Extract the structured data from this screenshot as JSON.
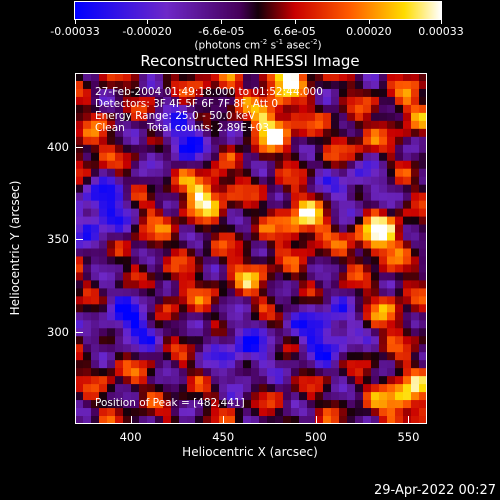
{
  "chart_data": {
    "type": "heatmap",
    "title": "Reconstructed RHESSI Image",
    "xlabel": "Heliocentric X (arcsec)",
    "ylabel": "Heliocentric Y (arcsec)",
    "xlim": [
      370,
      560
    ],
    "ylim": [
      250,
      440
    ],
    "xticks": [
      400,
      450,
      500,
      550
    ],
    "yticks": [
      300,
      350,
      400
    ],
    "colorbar": {
      "range": [
        -0.00033,
        0.00033
      ],
      "ticks": [
        "-0.00033",
        "-0.00020",
        "-6.6e-05",
        "6.6e-05",
        "0.00020",
        "0.00033"
      ],
      "units_text": "(photons cm",
      "units_exp1": "-2",
      "units_mid": " s",
      "units_exp2": "-1",
      "units_mid2": " asec",
      "units_exp3": "-2",
      "units_end": ")"
    },
    "info": {
      "time": "27-Feb-2004 01:49:18.000 to 01:52:44.000",
      "detectors": "Detectors: 3F 4F 5F 6F 7F 8F, Att 0",
      "energy": "Energy Range: 25.0 - 50.0 keV",
      "method": "Clean",
      "counts": "Total counts: 2.89E+03",
      "peak": "Position of Peak = [482,441]"
    },
    "peaks": [
      {
        "x": 482,
        "y": 441,
        "value": 0.00033
      },
      {
        "x": 477,
        "y": 412,
        "value": 0.00029
      },
      {
        "x": 440,
        "y": 376,
        "value": 0.0003
      },
      {
        "x": 493,
        "y": 360,
        "value": 0.00028
      },
      {
        "x": 533,
        "y": 352,
        "value": 0.00031
      },
      {
        "x": 548,
        "y": 264,
        "value": 0.0003
      },
      {
        "x": 375,
        "y": 398,
        "value": 0.00015
      },
      {
        "x": 406,
        "y": 358,
        "value": 0.00013
      },
      {
        "x": 425,
        "y": 318,
        "value": 0.00012
      },
      {
        "x": 465,
        "y": 330,
        "value": 0.00014
      },
      {
        "x": 520,
        "y": 400,
        "value": 0.00016
      },
      {
        "x": 550,
        "y": 420,
        "value": 0.00014
      },
      {
        "x": 540,
        "y": 310,
        "value": 0.00013
      },
      {
        "x": 395,
        "y": 280,
        "value": 9e-05
      },
      {
        "x": 445,
        "y": 430,
        "value": 0.00012
      }
    ],
    "troughs": [
      {
        "x": 385,
        "y": 365,
        "value": -0.00033
      },
      {
        "x": 505,
        "y": 300,
        "value": -0.0003
      },
      {
        "x": 460,
        "y": 290,
        "value": -0.00025
      },
      {
        "x": 430,
        "y": 405,
        "value": -0.00026
      },
      {
        "x": 520,
        "y": 380,
        "value": -0.00022
      },
      {
        "x": 400,
        "y": 305,
        "value": -0.00028
      }
    ]
  },
  "footer": {
    "date": "29-Apr-2022 00:27"
  }
}
